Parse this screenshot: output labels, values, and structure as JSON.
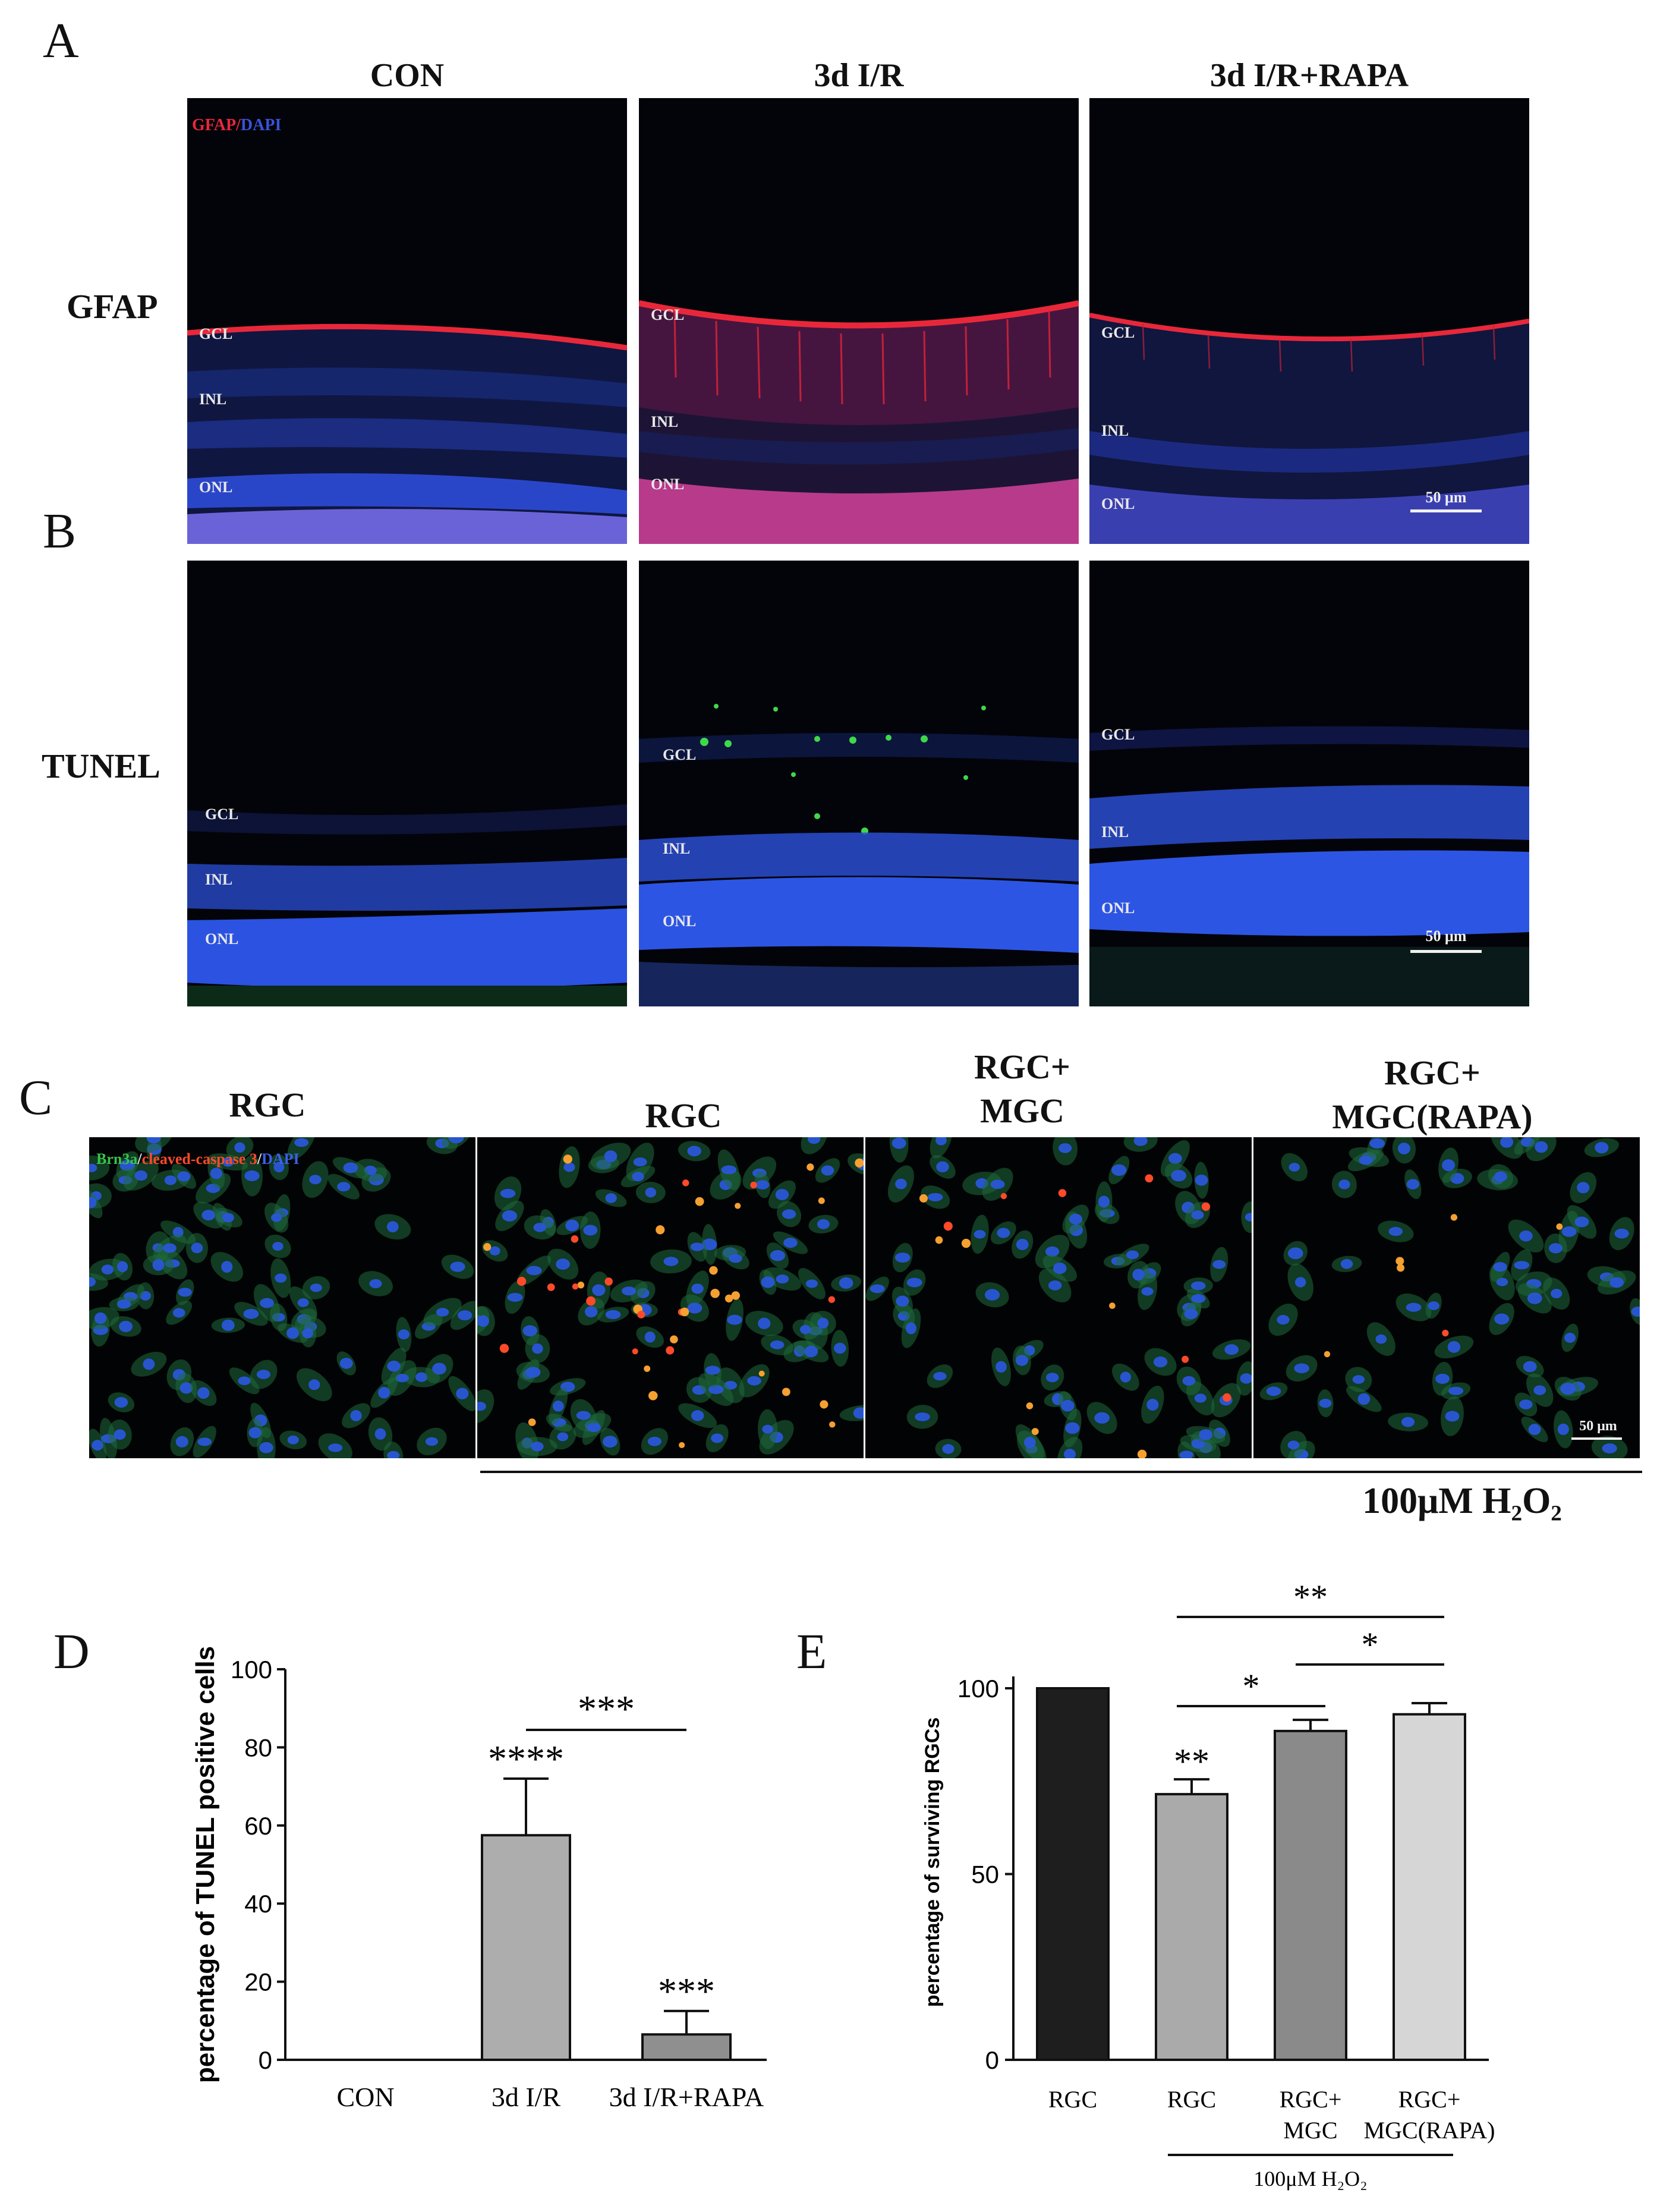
{
  "panels": {
    "a": {
      "label": "A",
      "columns": [
        "CON",
        "3d I/R",
        "3d I/R+RAPA"
      ],
      "row_label": "GFAP",
      "legend": {
        "red": "GFAP",
        "sep": "/",
        "blue": "DAPI"
      },
      "layers": [
        "GCL",
        "INL",
        "ONL"
      ],
      "scale_bar": "50 μm"
    },
    "b": {
      "label": "B",
      "row_label": "TUNEL",
      "layers": [
        "GCL",
        "INL",
        "ONL"
      ],
      "scale_bar": "50 μm"
    },
    "c": {
      "label": "C",
      "columns": [
        {
          "line1": "RGC",
          "line2": ""
        },
        {
          "line1": "RGC",
          "line2": ""
        },
        {
          "line1": "RGC+",
          "line2": "MGC"
        },
        {
          "line1": "RGC+",
          "line2": "MGC(RAPA)"
        }
      ],
      "legend": {
        "green": "Brn3a",
        "sep1": "/",
        "red": "cleaved-caspase 3",
        "sep2": "/",
        "blue": "DAPI"
      },
      "treatment": "100μM H₂O₂",
      "scale_bar": "50 μm"
    },
    "d": {
      "label": "D"
    },
    "e": {
      "label": "E"
    }
  },
  "colors": {
    "gfap_red": "#e8283a",
    "dapi_blue": "#2b4fd6",
    "brn3a_green": "#37c24a",
    "caspase_red": "#ff4a2a",
    "bar_black": "#1e1e1e"
  },
  "chart_data": [
    {
      "panel": "D",
      "type": "bar",
      "categories": [
        "CON",
        "3d I/R",
        "3d I/R+RAPA"
      ],
      "values": [
        0,
        57.5,
        6.5
      ],
      "errors": [
        0,
        14.5,
        6
      ],
      "bar_colors": [
        "#ffffff",
        "#adadad",
        "#8f8f8f"
      ],
      "significance": [
        "",
        "****",
        "***"
      ],
      "brackets": [
        {
          "from": 1,
          "to": 2,
          "label": "***"
        }
      ],
      "ylabel": "percentage of TUNEL positive cells",
      "xlabel": "",
      "ylim": [
        0,
        100
      ],
      "yticks": [
        0,
        20,
        40,
        60,
        80,
        100
      ]
    },
    {
      "panel": "E",
      "type": "bar",
      "categories": [
        {
          "line1": "RGC",
          "line2": ""
        },
        {
          "line1": "RGC",
          "line2": ""
        },
        {
          "line1": "RGC+",
          "line2": "MGC"
        },
        {
          "line1": "RGC+",
          "line2": "MGC(RAPA)"
        }
      ],
      "values": [
        100,
        71.5,
        88.5,
        93
      ],
      "errors": [
        0,
        4,
        3,
        3
      ],
      "bar_colors": [
        "#1e1e1e",
        "#aaaaaa",
        "#8a8a8a",
        "#d6d6d6"
      ],
      "significance": [
        "",
        "**",
        "",
        ""
      ],
      "brackets": [
        {
          "from": 1,
          "to": 3,
          "label": "**"
        },
        {
          "from": 2,
          "to": 3,
          "label": "*"
        },
        {
          "from": 1,
          "to": 2,
          "label": "*"
        }
      ],
      "treatment": "100μM H₂O₂",
      "ylabel": "percentage of surviving RGCs",
      "xlabel": "",
      "ylim": [
        0,
        100
      ],
      "yticks": [
        0,
        50,
        100
      ]
    }
  ]
}
